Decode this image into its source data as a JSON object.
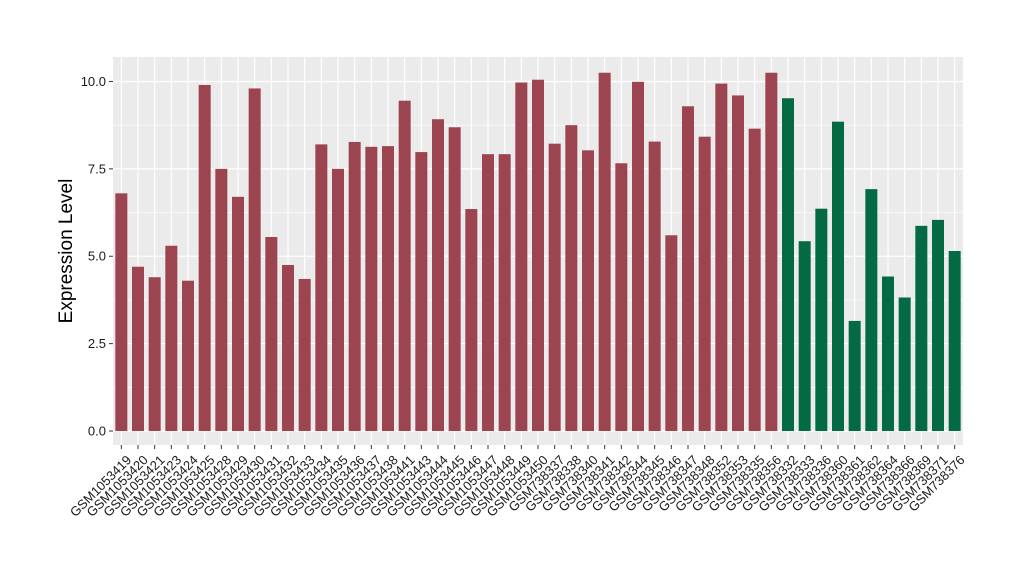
{
  "chart_data": {
    "type": "bar",
    "ylabel": "Expression Level",
    "xlabel": "",
    "ylim": [
      -0.4,
      10.7
    ],
    "yticks": [
      0.0,
      2.5,
      5.0,
      7.5,
      10.0
    ],
    "ytick_labels": [
      "0.0",
      "2.5",
      "5.0",
      "7.5",
      "10.0"
    ],
    "grid": true,
    "legend": "none",
    "colors": {
      "group1": "#9c4450",
      "group2": "#046a44",
      "panel": "#ebebeb",
      "grid": "#ffffff"
    },
    "categories": [
      "GSM1053419",
      "GSM1053420",
      "GSM1053421",
      "GSM1053423",
      "GSM1053424",
      "GSM1053425",
      "GSM1053428",
      "GSM1053429",
      "GSM1053430",
      "GSM1053431",
      "GSM1053432",
      "GSM1053433",
      "GSM1053434",
      "GSM1053435",
      "GSM1053436",
      "GSM1053437",
      "GSM1053438",
      "GSM1053441",
      "GSM1053443",
      "GSM1053444",
      "GSM1053445",
      "GSM1053446",
      "GSM1053447",
      "GSM1053448",
      "GSM1053449",
      "GSM1053450",
      "GSM738337",
      "GSM738338",
      "GSM738340",
      "GSM738341",
      "GSM738342",
      "GSM738344",
      "GSM738345",
      "GSM738346",
      "GSM738347",
      "GSM738348",
      "GSM738352",
      "GSM738353",
      "GSM738335",
      "GSM738356",
      "GSM738332",
      "GSM738333",
      "GSM738336",
      "GSM738360",
      "GSM738361",
      "GSM738362",
      "GSM738364",
      "GSM738366",
      "GSM738369",
      "GSM738371",
      "GSM738376"
    ],
    "values": [
      6.8,
      4.7,
      4.4,
      5.3,
      4.3,
      9.9,
      7.5,
      6.7,
      9.8,
      5.55,
      4.75,
      4.35,
      8.2,
      7.5,
      8.27,
      8.13,
      8.15,
      9.45,
      7.98,
      8.92,
      8.69,
      6.35,
      7.92,
      7.92,
      9.97,
      10.05,
      8.22,
      8.75,
      8.03,
      10.25,
      7.66,
      9.99,
      8.28,
      5.6,
      9.29,
      8.42,
      9.94,
      9.6,
      8.65,
      10.25,
      9.52,
      5.43,
      6.36,
      8.85,
      3.15,
      6.92,
      4.42,
      3.82,
      5.87,
      6.04,
      5.15
    ],
    "groups": [
      1,
      1,
      1,
      1,
      1,
      1,
      1,
      1,
      1,
      1,
      1,
      1,
      1,
      1,
      1,
      1,
      1,
      1,
      1,
      1,
      1,
      1,
      1,
      1,
      1,
      1,
      1,
      1,
      1,
      1,
      1,
      1,
      1,
      1,
      1,
      1,
      1,
      1,
      1,
      1,
      2,
      2,
      2,
      2,
      2,
      2,
      2,
      2,
      2,
      2,
      2
    ]
  }
}
